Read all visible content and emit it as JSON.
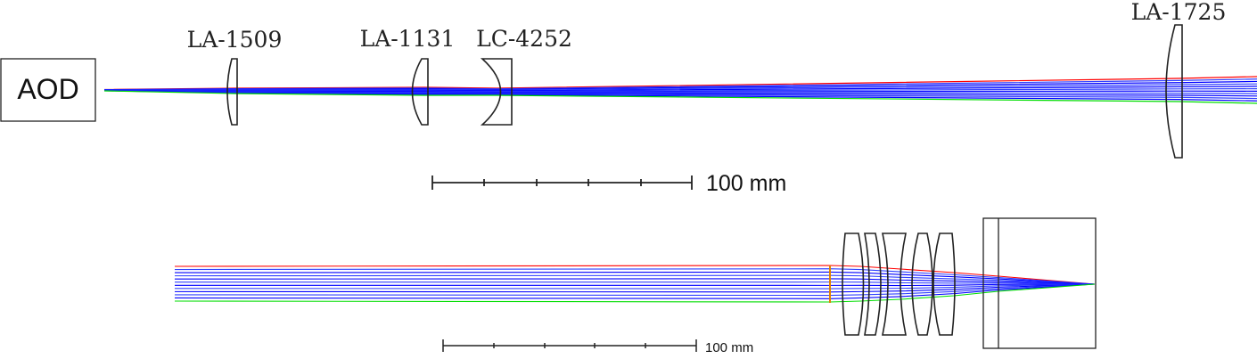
{
  "top_panel": {
    "source_label": "AOD",
    "lenses": [
      "LA-1509",
      "LA-1131",
      "LC-4252",
      "LA-1725"
    ],
    "scale_bar_label": "100 mm"
  },
  "bottom_panel": {
    "scale_bar_label": "100 mm"
  },
  "colors": {
    "ray_red": "#ff0000",
    "ray_blue": "#0000ff",
    "ray_green": "#00dd00",
    "outline": "#222222",
    "stop_marker": "#e08000"
  }
}
